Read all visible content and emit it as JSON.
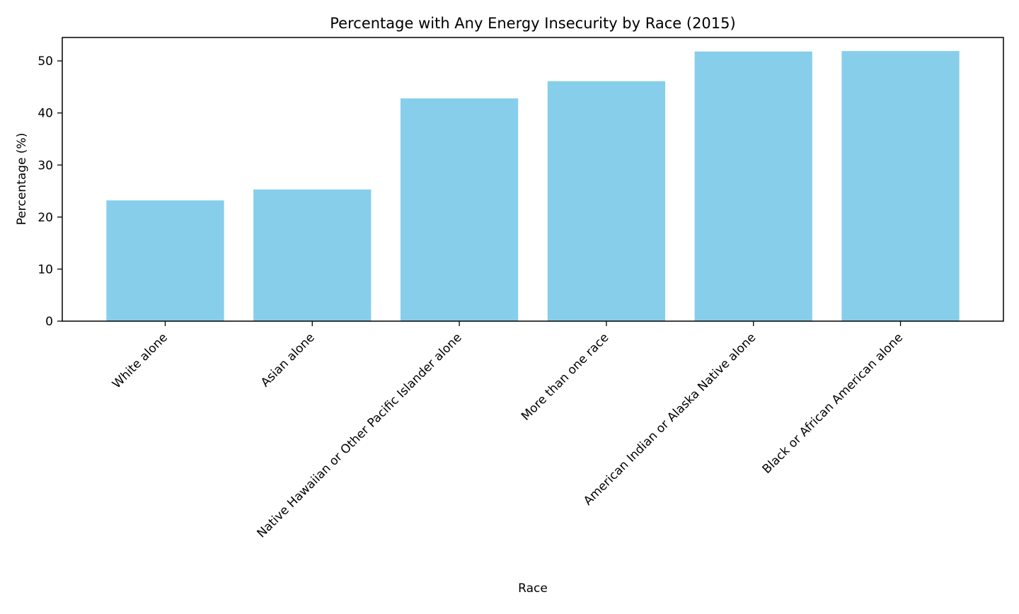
{
  "chart_data": {
    "type": "bar",
    "title": "Percentage with Any Energy Insecurity by Race (2015)",
    "xlabel": "Race",
    "ylabel": "Percentage (%)",
    "categories": [
      "White alone",
      "Asian alone",
      "Native Hawaiian or Other Pacific Islander alone",
      "More than one race",
      "American Indian or Alaska Native alone",
      "Black or African American alone"
    ],
    "values": [
      23.2,
      25.3,
      42.8,
      46.1,
      51.8,
      51.9
    ],
    "ylim": [
      0,
      54.5
    ],
    "yticks": [
      "0",
      "10",
      "20",
      "30",
      "40",
      "50"
    ],
    "bar_color": "#87CEEB",
    "grid": false,
    "legend": "none"
  }
}
